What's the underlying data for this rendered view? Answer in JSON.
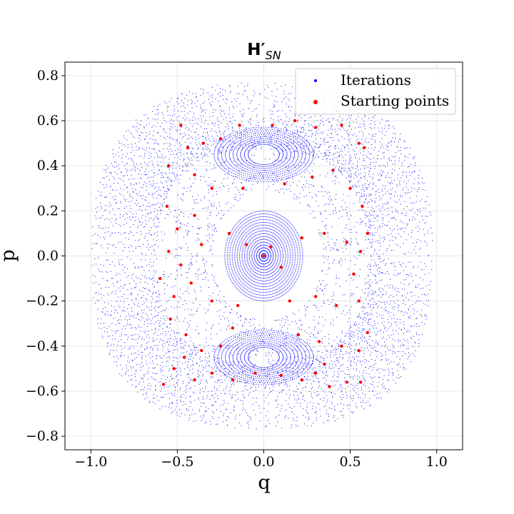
{
  "chart_data": {
    "type": "scatter",
    "title": "H′",
    "title_subscript": "SN",
    "xlabel": "q",
    "ylabel": "p",
    "xlim": [
      -1.15,
      1.15
    ],
    "ylim": [
      -0.86,
      0.86
    ],
    "x_ticks": [
      -1.0,
      -0.5,
      0.0,
      0.5,
      1.0
    ],
    "x_tick_labels": [
      "−1.0",
      "−0.5",
      "0.0",
      "0.5",
      "1.0"
    ],
    "y_ticks": [
      -0.8,
      -0.6,
      -0.4,
      -0.2,
      0.0,
      0.2,
      0.4,
      0.6,
      0.8
    ],
    "y_tick_labels": [
      "−0.8",
      "−0.6",
      "−0.4",
      "−0.2",
      "0.0",
      "0.2",
      "0.4",
      "0.6",
      "0.8"
    ],
    "grid": true,
    "legend_position": "top-right",
    "series": [
      {
        "name": "Iterations",
        "color": "#0000ff",
        "marker": "dot",
        "structure": {
          "outer_boundary_q_range": [
            -1.0,
            0.98
          ],
          "outer_boundary_p_range": [
            -0.77,
            0.77
          ],
          "central_islands": [
            [
              0.0,
              0.0
            ]
          ],
          "resonance_islands": [
            [
              0.0,
              0.45
            ],
            [
              0.0,
              -0.45
            ]
          ],
          "hyperbolic_points": [
            [
              -0.42,
              0.0
            ],
            [
              0.42,
              0.0
            ]
          ]
        }
      },
      {
        "name": "Starting points",
        "color": "#ff0000",
        "marker": "circle",
        "points": [
          [
            -0.48,
            0.58
          ],
          [
            -0.44,
            0.48
          ],
          [
            -0.35,
            0.5
          ],
          [
            -0.25,
            0.52
          ],
          [
            -0.14,
            0.58
          ],
          [
            0.05,
            0.58
          ],
          [
            0.18,
            0.6
          ],
          [
            0.3,
            0.57
          ],
          [
            0.45,
            0.58
          ],
          [
            0.55,
            0.5
          ],
          [
            0.58,
            0.48
          ],
          [
            -0.55,
            0.4
          ],
          [
            -0.4,
            0.36
          ],
          [
            -0.3,
            0.3
          ],
          [
            -0.12,
            0.3
          ],
          [
            0.12,
            0.32
          ],
          [
            0.28,
            0.35
          ],
          [
            0.4,
            0.38
          ],
          [
            0.5,
            0.3
          ],
          [
            0.57,
            0.22
          ],
          [
            -0.56,
            0.22
          ],
          [
            -0.5,
            0.12
          ],
          [
            -0.4,
            0.18
          ],
          [
            -0.55,
            0.02
          ],
          [
            -0.48,
            -0.04
          ],
          [
            -0.36,
            0.05
          ],
          [
            -0.2,
            0.1
          ],
          [
            -0.1,
            0.05
          ],
          [
            0.0,
            0.0
          ],
          [
            0.04,
            0.04
          ],
          [
            0.1,
            -0.05
          ],
          [
            0.22,
            0.08
          ],
          [
            0.35,
            0.1
          ],
          [
            0.48,
            0.06
          ],
          [
            0.56,
            0.02
          ],
          [
            0.52,
            -0.08
          ],
          [
            -0.52,
            -0.18
          ],
          [
            -0.42,
            -0.12
          ],
          [
            -0.3,
            -0.2
          ],
          [
            -0.15,
            -0.22
          ],
          [
            0.15,
            -0.2
          ],
          [
            0.3,
            -0.18
          ],
          [
            0.42,
            -0.22
          ],
          [
            0.55,
            -0.2
          ],
          [
            -0.54,
            -0.28
          ],
          [
            -0.45,
            -0.35
          ],
          [
            -0.36,
            -0.42
          ],
          [
            -0.25,
            -0.4
          ],
          [
            -0.18,
            -0.32
          ],
          [
            0.2,
            -0.35
          ],
          [
            0.32,
            -0.38
          ],
          [
            0.45,
            -0.4
          ],
          [
            0.55,
            -0.42
          ],
          [
            0.6,
            -0.34
          ],
          [
            -0.58,
            -0.57
          ],
          [
            -0.52,
            -0.5
          ],
          [
            -0.4,
            -0.55
          ],
          [
            -0.3,
            -0.52
          ],
          [
            -0.18,
            -0.55
          ],
          [
            -0.05,
            -0.52
          ],
          [
            0.1,
            -0.53
          ],
          [
            0.22,
            -0.55
          ],
          [
            0.3,
            -0.52
          ],
          [
            0.38,
            -0.58
          ],
          [
            0.48,
            -0.56
          ],
          [
            0.56,
            -0.56
          ],
          [
            0.35,
            -0.48
          ],
          [
            -0.46,
            -0.45
          ],
          [
            -0.6,
            -0.1
          ],
          [
            0.6,
            0.1
          ]
        ]
      }
    ]
  }
}
